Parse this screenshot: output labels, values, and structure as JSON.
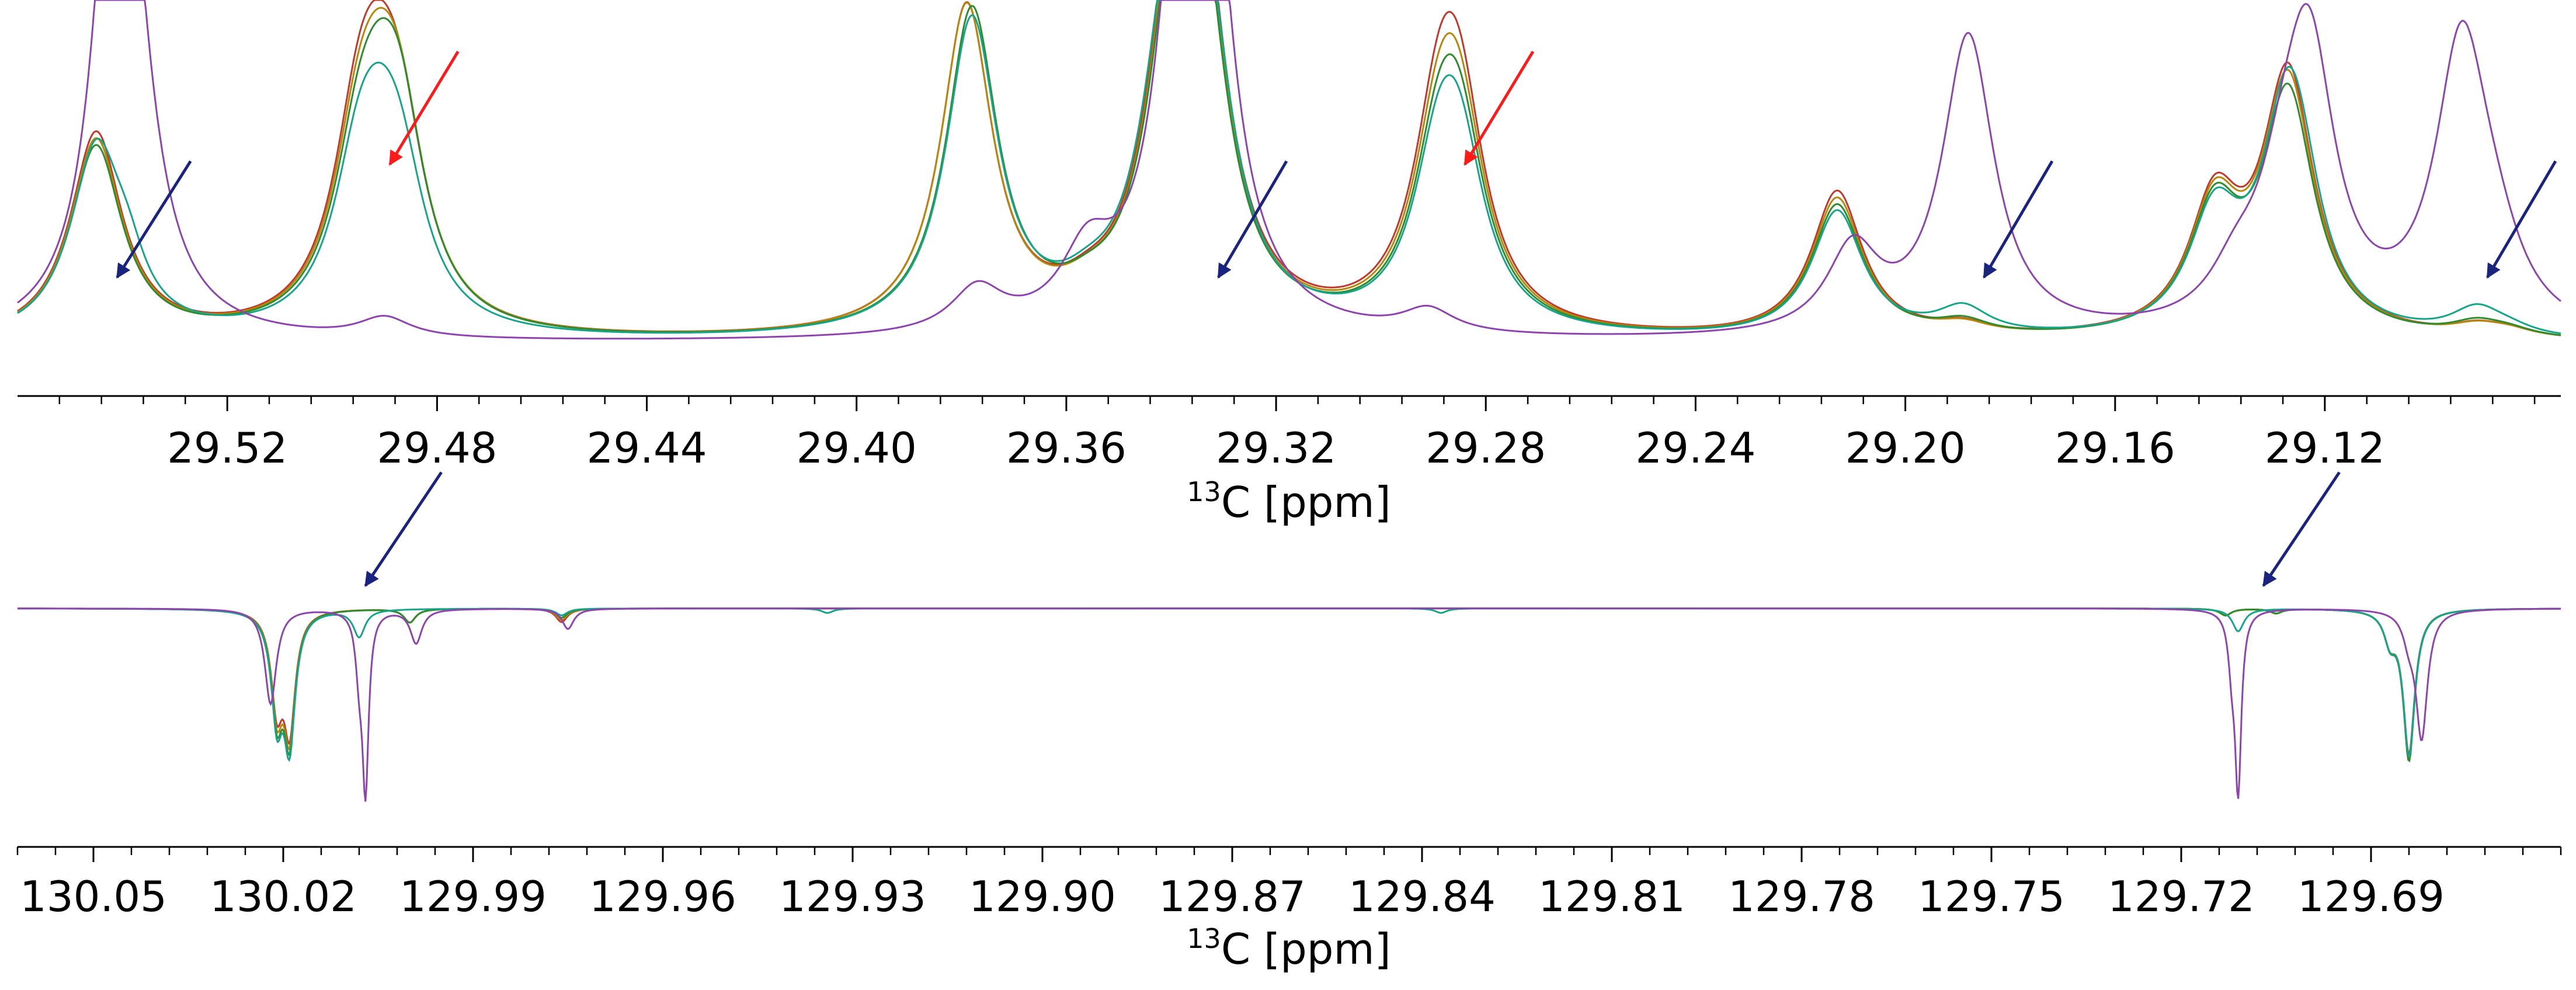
{
  "chart_data": [
    {
      "type": "line",
      "x_reversed": true,
      "xlim": [
        29.56,
        29.075
      ],
      "ylim": [
        -0.02,
        1.0
      ],
      "xlabel_sup": "13",
      "xlabel": "C [ppm]",
      "ticks": [
        29.52,
        29.48,
        29.44,
        29.4,
        29.36,
        29.32,
        29.28,
        29.24,
        29.2,
        29.16,
        29.12
      ],
      "tick_labels": [
        "29.52",
        "29.48",
        "29.44",
        "29.40",
        "29.36",
        "29.32",
        "29.28",
        "29.24",
        "29.20",
        "29.16",
        "29.12"
      ],
      "minor_step": 0.008,
      "linewidth": 0.006,
      "series": [
        {
          "color": "#c0392b",
          "peaks": [
            [
              29.545,
              0.62,
              1
            ],
            [
              29.495,
              0.48,
              1
            ],
            [
              29.491,
              0.38,
              1
            ],
            [
              29.487,
              0.45,
              1
            ],
            [
              29.379,
              0.98,
              1
            ],
            [
              29.34,
              0.5,
              1
            ],
            [
              29.337,
              0.68,
              1
            ],
            [
              29.334,
              0.62,
              1
            ],
            [
              29.356,
              0.04,
              1
            ],
            [
              29.289,
              0.52,
              1
            ],
            [
              29.285,
              0.55,
              1
            ],
            [
              29.213,
              0.44,
              1
            ],
            [
              29.189,
              0.03,
              1
            ],
            [
              29.141,
              0.38,
              1
            ],
            [
              29.127,
              0.78,
              1
            ],
            [
              29.091,
              0.03,
              1
            ],
            [
              29.085,
              0.02,
              1
            ]
          ]
        },
        {
          "color": "#b8860b",
          "peaks": [
            [
              29.545,
              0.6,
              1
            ],
            [
              29.495,
              0.44,
              1
            ],
            [
              29.491,
              0.36,
              1
            ],
            [
              29.487,
              0.48,
              1
            ],
            [
              29.379,
              0.98,
              1
            ],
            [
              29.34,
              0.48,
              1
            ],
            [
              29.337,
              0.66,
              1
            ],
            [
              29.334,
              0.6,
              1
            ],
            [
              29.356,
              0.04,
              1
            ],
            [
              29.289,
              0.48,
              1
            ],
            [
              29.285,
              0.52,
              1
            ],
            [
              29.213,
              0.42,
              1
            ],
            [
              29.189,
              0.03,
              1
            ],
            [
              29.141,
              0.37,
              1
            ],
            [
              29.127,
              0.76,
              1
            ],
            [
              29.091,
              0.03,
              1
            ],
            [
              29.085,
              0.02,
              1
            ]
          ]
        },
        {
          "color": "#2e8b2e",
          "peaks": [
            [
              29.545,
              0.58,
              1
            ],
            [
              29.495,
              0.4,
              1
            ],
            [
              29.491,
              0.34,
              1
            ],
            [
              29.487,
              0.5,
              1
            ],
            [
              29.378,
              0.97,
              1
            ],
            [
              29.34,
              0.47,
              1
            ],
            [
              29.337,
              0.64,
              1
            ],
            [
              29.334,
              0.58,
              1
            ],
            [
              29.356,
              0.04,
              1
            ],
            [
              29.289,
              0.44,
              1
            ],
            [
              29.285,
              0.49,
              1
            ],
            [
              29.213,
              0.4,
              1
            ],
            [
              29.189,
              0.04,
              1
            ],
            [
              29.141,
              0.36,
              1
            ],
            [
              29.127,
              0.72,
              1
            ],
            [
              29.091,
              0.04,
              1
            ],
            [
              29.085,
              0.02,
              1
            ]
          ]
        },
        {
          "color": "#17a589",
          "peaks": [
            [
              29.545,
              0.56,
              1
            ],
            [
              29.539,
              0.12,
              0.7
            ],
            [
              29.495,
              0.38,
              1
            ],
            [
              29.491,
              0.32,
              1
            ],
            [
              29.487,
              0.36,
              1
            ],
            [
              29.378,
              0.94,
              1
            ],
            [
              29.341,
              0.52,
              1
            ],
            [
              29.337,
              0.6,
              1
            ],
            [
              29.334,
              0.55,
              1
            ],
            [
              29.331,
              0.1,
              0.8
            ],
            [
              29.356,
              0.05,
              1
            ],
            [
              29.289,
              0.42,
              1
            ],
            [
              29.285,
              0.44,
              1
            ],
            [
              29.213,
              0.38,
              1
            ],
            [
              29.189,
              0.08,
              1
            ],
            [
              29.141,
              0.34,
              1
            ],
            [
              29.127,
              0.7,
              1
            ],
            [
              29.124,
              0.1,
              0.8
            ],
            [
              29.091,
              0.08,
              1
            ],
            [
              29.085,
              0.02,
              1
            ]
          ]
        },
        {
          "color": "#8e44ad",
          "peaks": [
            [
              29.54,
              1.3,
              0.9
            ],
            [
              29.542,
              0.55,
              0.7
            ],
            [
              29.536,
              0.07,
              1
            ],
            [
              29.49,
              0.06,
              1
            ],
            [
              29.377,
              0.13,
              1
            ],
            [
              29.356,
              0.2,
              1
            ],
            [
              29.336,
              0.85,
              0.9
            ],
            [
              29.334,
              1.25,
              0.9
            ],
            [
              29.339,
              0.3,
              0.8
            ],
            [
              29.291,
              0.07,
              1
            ],
            [
              29.21,
              0.25,
              1
            ],
            [
              29.188,
              0.9,
              1
            ],
            [
              29.137,
              0.12,
              1
            ],
            [
              29.128,
              0.25,
              1
            ],
            [
              29.123,
              0.8,
              1
            ],
            [
              29.094,
              0.82,
              1
            ],
            [
              29.09,
              0.08,
              1
            ],
            [
              29.087,
              0.11,
              1
            ]
          ]
        }
      ],
      "arrows": [
        {
          "color": "#1a237e",
          "from": [
            29.527,
            0.55
          ],
          "to": [
            29.541,
            0.2
          ]
        },
        {
          "color": "#ff1a1a",
          "from": [
            29.476,
            0.88
          ],
          "to": [
            29.489,
            0.54
          ]
        },
        {
          "color": "#1a237e",
          "from": [
            29.318,
            0.55
          ],
          "to": [
            29.331,
            0.2
          ]
        },
        {
          "color": "#ff1a1a",
          "from": [
            29.271,
            0.88
          ],
          "to": [
            29.284,
            0.54
          ]
        },
        {
          "color": "#1a237e",
          "from": [
            29.172,
            0.55
          ],
          "to": [
            29.185,
            0.2
          ]
        },
        {
          "color": "#1a237e",
          "from": [
            29.076,
            0.55
          ],
          "to": [
            29.089,
            0.2
          ]
        }
      ]
    },
    {
      "type": "line",
      "x_reversed": true,
      "xlim": [
        130.062,
        129.66
      ],
      "ylim": [
        -1.0,
        0.12
      ],
      "xlabel_sup": "13",
      "xlabel": "C [ppm]",
      "ticks": [
        130.05,
        130.02,
        129.99,
        129.96,
        129.93,
        129.9,
        129.87,
        129.84,
        129.81,
        129.78,
        129.75,
        129.72,
        129.69
      ],
      "tick_labels": [
        "130.05",
        "130.02",
        "129.99",
        "129.96",
        "129.93",
        "129.90",
        "129.87",
        "129.84",
        "129.81",
        "129.78",
        "129.75",
        "129.72",
        "129.69"
      ],
      "minor_step": 0.006,
      "linewidth": 0.0011,
      "series": [
        {
          "color": "#c0392b",
          "peaks": [
            [
              130.021,
              -0.4,
              1
            ],
            [
              130.019,
              -0.5,
              1
            ],
            [
              130.0,
              -0.06,
              1
            ],
            [
              129.976,
              -0.06,
              1
            ],
            [
              129.713,
              -0.03,
              1
            ],
            [
              129.705,
              -0.02,
              1
            ],
            [
              129.684,
              -0.63,
              1
            ],
            [
              129.687,
              -0.12,
              1
            ]
          ]
        },
        {
          "color": "#b8860b",
          "peaks": [
            [
              130.021,
              -0.42,
              1
            ],
            [
              130.019,
              -0.52,
              1
            ],
            [
              130.0,
              -0.06,
              1
            ],
            [
              129.976,
              -0.05,
              1
            ],
            [
              129.713,
              -0.03,
              1
            ],
            [
              129.705,
              -0.02,
              1
            ],
            [
              129.684,
              -0.65,
              1
            ],
            [
              129.687,
              -0.12,
              1
            ]
          ]
        },
        {
          "color": "#2e8b2e",
          "peaks": [
            [
              130.021,
              -0.44,
              1
            ],
            [
              130.019,
              -0.54,
              1
            ],
            [
              130.0,
              -0.06,
              1
            ],
            [
              129.976,
              -0.04,
              1
            ],
            [
              129.713,
              -0.03,
              1
            ],
            [
              129.705,
              -0.02,
              1
            ],
            [
              129.684,
              -0.66,
              1
            ],
            [
              129.687,
              -0.12,
              1
            ]
          ]
        },
        {
          "color": "#17a589",
          "peaks": [
            [
              130.021,
              -0.45,
              1
            ],
            [
              130.019,
              -0.56,
              1
            ],
            [
              130.008,
              -0.12,
              1
            ],
            [
              129.976,
              -0.03,
              1
            ],
            [
              129.934,
              -0.02,
              1
            ],
            [
              129.837,
              -0.02,
              1
            ],
            [
              129.711,
              -0.1,
              1
            ],
            [
              129.684,
              -0.64,
              1
            ],
            [
              129.687,
              -0.12,
              1
            ]
          ]
        },
        {
          "color": "#8e44ad",
          "peaks": [
            [
              130.022,
              -0.42,
              1
            ],
            [
              130.007,
              -0.78,
              0.55
            ],
            [
              130.008,
              -0.22,
              0.6
            ],
            [
              129.999,
              -0.15,
              1
            ],
            [
              129.975,
              -0.09,
              1
            ],
            [
              129.711,
              -0.78,
              0.55
            ],
            [
              129.712,
              -0.2,
              0.6
            ],
            [
              129.682,
              -0.56,
              1
            ],
            [
              129.684,
              -0.1,
              1
            ]
          ]
        }
      ],
      "arrows": [
        {
          "color": "#1a237e",
          "from": [
            129.995,
            0.6
          ],
          "to": [
            130.007,
            0.1
          ]
        },
        {
          "color": "#1a237e",
          "from": [
            129.695,
            0.6
          ],
          "to": [
            129.707,
            0.1
          ]
        }
      ]
    }
  ]
}
